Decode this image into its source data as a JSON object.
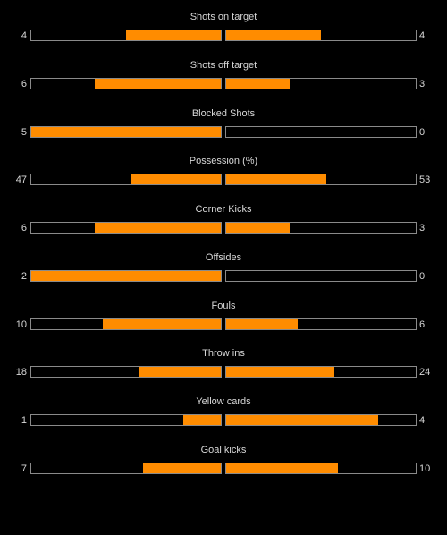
{
  "colors": {
    "background": "#000000",
    "bar_fill": "#ff8c00",
    "bar_border": "#8a8a8a",
    "text": "#d8d8d8"
  },
  "stats": [
    {
      "label": "Shots on target",
      "home": "4",
      "away": "4",
      "home_fill": 0.5,
      "away_fill": 0.5
    },
    {
      "label": "Shots off target",
      "home": "6",
      "away": "3",
      "home_fill": 0.667,
      "away_fill": 0.333
    },
    {
      "label": "Blocked Shots",
      "home": "5",
      "away": "0",
      "home_fill": 1.0,
      "away_fill": 0.0
    },
    {
      "label": "Possession (%)",
      "home": "47",
      "away": "53",
      "home_fill": 0.47,
      "away_fill": 0.53
    },
    {
      "label": "Corner Kicks",
      "home": "6",
      "away": "3",
      "home_fill": 0.667,
      "away_fill": 0.333
    },
    {
      "label": "Offsides",
      "home": "2",
      "away": "0",
      "home_fill": 1.0,
      "away_fill": 0.0
    },
    {
      "label": "Fouls",
      "home": "10",
      "away": "6",
      "home_fill": 0.625,
      "away_fill": 0.375
    },
    {
      "label": "Throw ins",
      "home": "18",
      "away": "24",
      "home_fill": 0.429,
      "away_fill": 0.571
    },
    {
      "label": "Yellow cards",
      "home": "1",
      "away": "4",
      "home_fill": 0.2,
      "away_fill": 0.8
    },
    {
      "label": "Goal kicks",
      "home": "7",
      "away": "10",
      "home_fill": 0.412,
      "away_fill": 0.588
    }
  ]
}
